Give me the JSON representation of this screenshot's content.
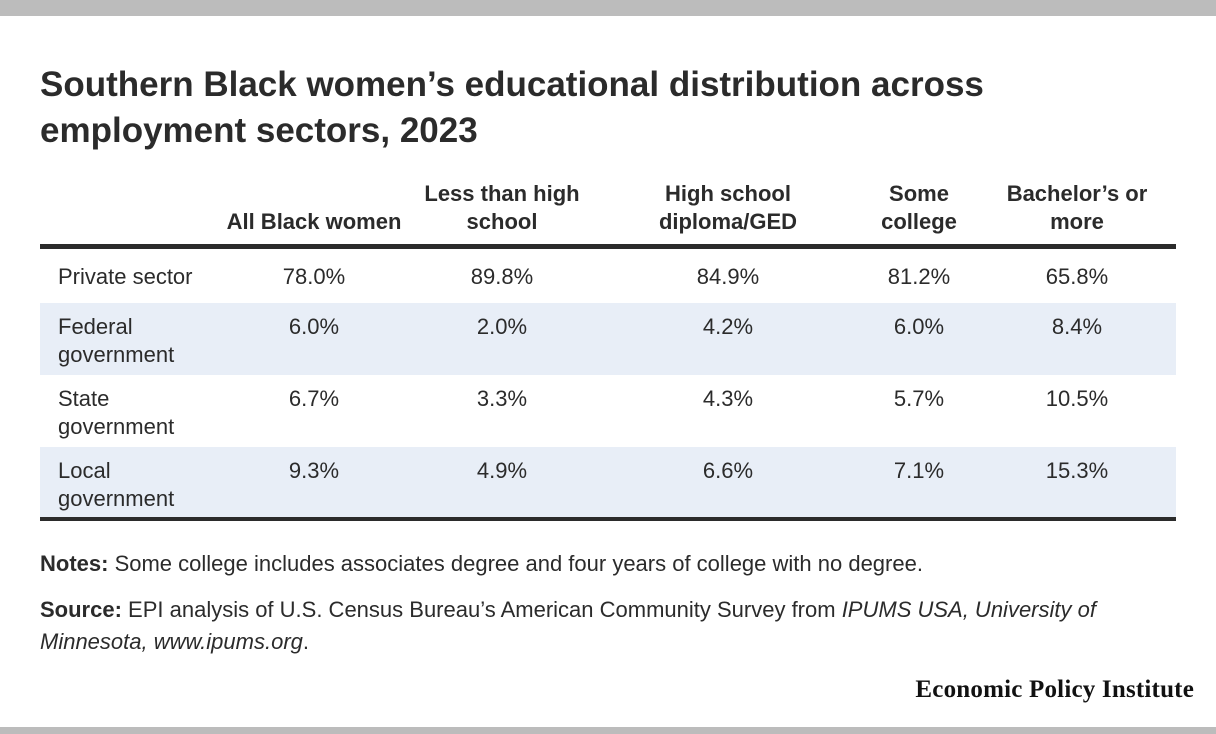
{
  "chart_data": {
    "type": "table",
    "title": "Southern Black women’s educational distribution across employment sectors, 2023",
    "columns": [
      "All Black women",
      "Less than high school",
      "High school diploma/GED",
      "Some college",
      "Bachelor’s or more"
    ],
    "rows": [
      {
        "label": "Private sector",
        "values": [
          "78.0%",
          "89.8%",
          "84.9%",
          "81.2%",
          "65.8%"
        ]
      },
      {
        "label": "Federal government",
        "values": [
          "6.0%",
          "2.0%",
          "4.2%",
          "6.0%",
          "8.4%"
        ]
      },
      {
        "label": "State government",
        "values": [
          "6.7%",
          "3.3%",
          "4.3%",
          "5.7%",
          "10.5%"
        ]
      },
      {
        "label": "Local government",
        "values": [
          "9.3%",
          "4.9%",
          "6.6%",
          "7.1%",
          "15.3%"
        ]
      }
    ]
  },
  "notes": {
    "label": "Notes:",
    "text": " Some college includes associates degree and four years of college with no degree."
  },
  "source": {
    "label": "Source:",
    "text": " EPI analysis of U.S. Census Bureau’s American Community Survey from ",
    "italic": "IPUMS USA, University of Minnesota, www.ipums.org",
    "end": "."
  },
  "logo": "Economic Policy Institute"
}
